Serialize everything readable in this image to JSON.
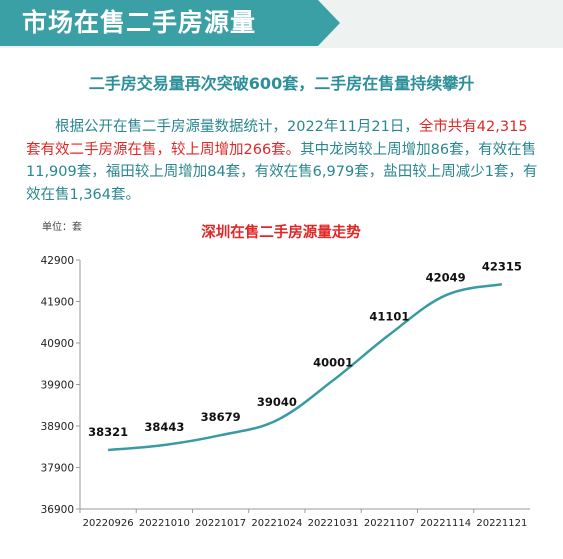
{
  "header": {
    "title": "市场在售二手房源量"
  },
  "subtitle": "二手房交易量再次突破600套，二手房在售量持续攀升",
  "paragraph": {
    "part1": "根据公开在售二手房源量数据统计，2022年11月21日，",
    "part2_highlight": "全市共有42,315套有效二手房源在售，较上周增加266套。",
    "part3": "其中龙岗较上周增加86套，有效在售11,909套，福田较上周增加84套，有效在售6,979套，盐田较上周减少1套，有效在售1,364套。"
  },
  "colors": {
    "accent": "#3aa0a6",
    "text_teal": "#2a8790",
    "highlight_red": "#e02727",
    "line": "#3a9aa3"
  },
  "chart_data": {
    "type": "line",
    "title": "深圳在售二手房源量走势",
    "unit_label": "单位：套",
    "categories": [
      "20220926",
      "20221010",
      "20221017",
      "20221024",
      "20221031",
      "20221107",
      "20221114",
      "20221121"
    ],
    "values": [
      38321,
      38443,
      38679,
      39040,
      40001,
      41101,
      42049,
      42315
    ],
    "yticks": [
      36900,
      37900,
      38900,
      39900,
      40900,
      41900,
      42900
    ],
    "ylim": [
      36900,
      42900
    ],
    "grid": false
  }
}
